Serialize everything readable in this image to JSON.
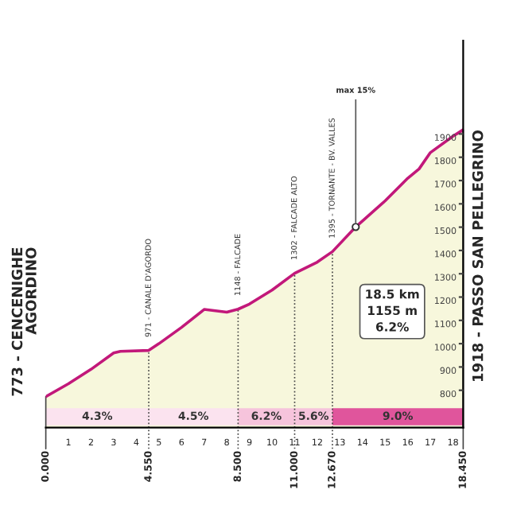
{
  "chart_data": {
    "type": "area",
    "x": [
      0,
      1,
      2,
      3,
      3.3,
      4.55,
      5,
      6,
      7,
      8,
      8.5,
      9,
      10,
      11,
      12,
      12.67,
      13.7,
      15,
      16,
      16.5,
      17,
      18,
      18.45
    ],
    "series": [
      {
        "color": "#c2187a",
        "values": [
          773,
          828,
          890,
          960,
          967,
          971,
          1000,
          1070,
          1147,
          1135,
          1148,
          1170,
          1230,
          1302,
          1350,
          1395,
          1501,
          1613,
          1710,
          1750,
          1820,
          1890,
          1918
        ]
      }
    ],
    "xlim": [
      0,
      18.45
    ],
    "ylim": [
      640,
      2300
    ],
    "xticks": [
      1,
      2,
      3,
      4,
      5,
      6,
      7,
      8,
      9,
      10,
      11,
      12,
      13,
      14,
      15,
      16,
      17,
      18
    ],
    "yticks": [
      800,
      900,
      1000,
      1100,
      1200,
      1300,
      1400,
      1500,
      1600,
      1700,
      1800,
      1900
    ],
    "ref_lines": [
      {
        "axis": "x",
        "value": 0,
        "label": "0.000"
      },
      {
        "axis": "x",
        "value": 4.55,
        "label": "4.550",
        "line_style": "dotted"
      },
      {
        "axis": "x",
        "value": 8.5,
        "label": "8.500",
        "line_style": "dotted"
      },
      {
        "axis": "x",
        "value": 11,
        "label": "11.000",
        "line_style": "dotted"
      },
      {
        "axis": "x",
        "value": 12.67,
        "label": "12.670",
        "line_style": "dotted"
      },
      {
        "axis": "x",
        "value": 18.45,
        "label": "18.450"
      }
    ],
    "bands": [
      {
        "axis": "x",
        "from": 0,
        "to": 4.55,
        "label": "4.3%",
        "color": "#fbe3ef"
      },
      {
        "axis": "x",
        "from": 4.55,
        "to": 8.5,
        "label": "4.5%",
        "color": "#fbe3ef"
      },
      {
        "axis": "x",
        "from": 8.5,
        "to": 11,
        "label": "6.2%",
        "color": "#f6c4dc"
      },
      {
        "axis": "x",
        "from": 11,
        "to": 12.67,
        "label": "5.6%",
        "color": "#f6c4dc"
      },
      {
        "axis": "x",
        "from": 12.67,
        "to": 18.45,
        "label": "9.0%",
        "color": "#e0559c"
      }
    ],
    "annotations": [
      {
        "text": "773 - CENCENIGHE\nAGORDINO",
        "x": 0,
        "y": 773
      },
      {
        "text": "971 - CANALE D'AGORDO",
        "x": 4.55,
        "y": 971
      },
      {
        "text": "1148 - FALCADE",
        "x": 8.5,
        "y": 1148
      },
      {
        "text": "1302 - FALCADE ALTO",
        "x": 11,
        "y": 1302
      },
      {
        "text": "1395 - TORNANTE - BV. VALLES",
        "x": 12.67,
        "y": 1395
      },
      {
        "text": "max 15%",
        "x": 13.7,
        "y": 1501
      },
      {
        "text": "1918 - PASSO SAN PELLEGRINO",
        "x": 18.45,
        "y": 1918
      },
      "18.5 km\n1155 m\n6.2%"
    ],
    "marker": "none",
    "grid": false,
    "legend": false
  }
}
